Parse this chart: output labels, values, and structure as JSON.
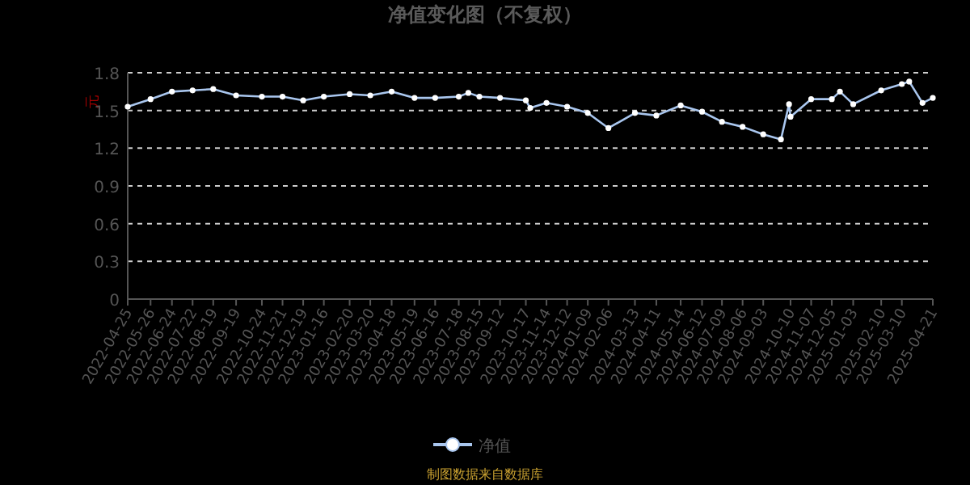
{
  "chart_data": {
    "type": "line",
    "title": "净值变化图（不复权）",
    "ylabel": "元",
    "annotations": [
      "制图数据来自数据库"
    ],
    "x": [
      "2022-04-25",
      "2022-05-26",
      "2022-06-24",
      "2022-07-22",
      "2022-08-19",
      "2022-09-19",
      "2022-10-24",
      "2022-11-21",
      "2022-12-19",
      "2023-01-16",
      "2023-02-20",
      "2023-03-20",
      "2023-04-18",
      "2023-05-19",
      "2023-06-16",
      "2023-07-18",
      "2023-07-31",
      "2023-08-15",
      "2023-09-12",
      "2023-10-17",
      "2023-10-23",
      "2023-11-14",
      "2023-12-12",
      "2024-01-09",
      "2024-02-06",
      "2024-03-13",
      "2024-04-11",
      "2024-05-14",
      "2024-06-12",
      "2024-07-09",
      "2024-08-06",
      "2024-09-03",
      "2024-09-27",
      "2024-10-08",
      "2024-10-10",
      "2024-11-07",
      "2024-12-05",
      "2024-12-16",
      "2025-01-03",
      "2025-02-10",
      "2025-03-10",
      "2025-03-20",
      "2025-04-07",
      "2025-04-21"
    ],
    "series": [
      {
        "name": "净值",
        "color": "#a9c6ee",
        "values": [
          1.53,
          1.59,
          1.65,
          1.66,
          1.67,
          1.62,
          1.61,
          1.61,
          1.58,
          1.61,
          1.63,
          1.62,
          1.65,
          1.6,
          1.6,
          1.61,
          1.64,
          1.61,
          1.6,
          1.58,
          1.52,
          1.56,
          1.53,
          1.48,
          1.36,
          1.48,
          1.46,
          1.54,
          1.49,
          1.41,
          1.37,
          1.31,
          1.27,
          1.55,
          1.45,
          1.59,
          1.59,
          1.65,
          1.55,
          1.66,
          1.71,
          1.73,
          1.56,
          1.6
        ]
      }
    ],
    "xlim": [
      "2022-04-25",
      "2025-04-21"
    ],
    "xticks": [
      "2022-04-25",
      "2022-05-26",
      "2022-06-24",
      "2022-07-22",
      "2022-08-19",
      "2022-09-19",
      "2022-10-24",
      "2022-11-21",
      "2022-12-19",
      "2023-01-16",
      "2023-02-20",
      "2023-03-20",
      "2023-04-18",
      "2023-05-19",
      "2023-06-16",
      "2023-07-18",
      "2023-08-15",
      "2023-09-12",
      "2023-10-17",
      "2023-11-14",
      "2023-12-12",
      "2024-01-09",
      "2024-02-06",
      "2024-03-13",
      "2024-04-11",
      "2024-05-14",
      "2024-06-12",
      "2024-07-09",
      "2024-08-06",
      "2024-09-03",
      "2024-10-10",
      "2024-11-07",
      "2024-12-05",
      "2025-01-03",
      "2025-02-10",
      "2025-03-10",
      "2025-04-21"
    ],
    "ylim": [
      0,
      1.8
    ],
    "yticks": [
      0,
      0.3,
      0.6,
      0.9,
      1.2,
      1.5,
      1.8
    ],
    "grid": "y",
    "legend": "bottom",
    "marker": "circle",
    "line_style": "solid"
  }
}
